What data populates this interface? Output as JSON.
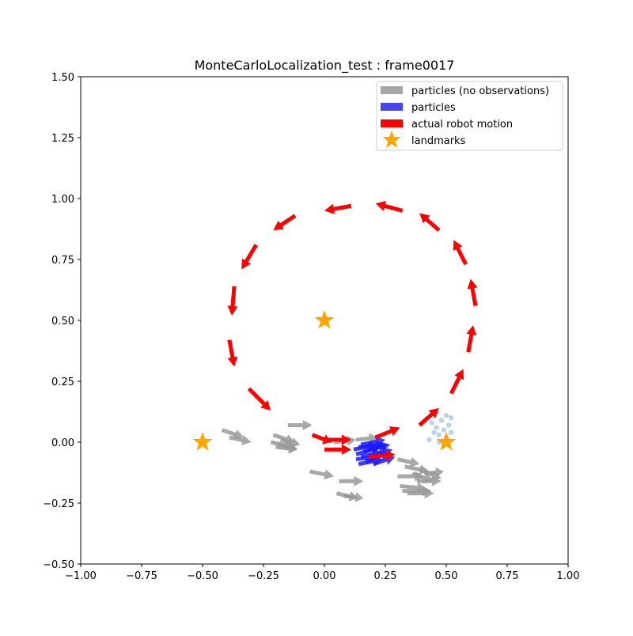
{
  "chart_data": {
    "type": "scatter",
    "title": "MonteCarloLocalization_test : frame0017",
    "xlabel": "",
    "ylabel": "",
    "xlim": [
      -1.0,
      1.0
    ],
    "ylim": [
      -0.5,
      1.5
    ],
    "x_ticks": [
      "−1.00",
      "−0.75",
      "−0.50",
      "−0.25",
      "0.00",
      "0.25",
      "0.50",
      "0.75",
      "1.00"
    ],
    "x_tick_values": [
      -1.0,
      -0.75,
      -0.5,
      -0.25,
      0.0,
      0.25,
      0.5,
      0.75,
      1.0
    ],
    "y_ticks": [
      "−0.50",
      "−0.25",
      "0.00",
      "0.25",
      "0.50",
      "0.75",
      "1.00",
      "1.25",
      "1.50"
    ],
    "y_tick_values": [
      -0.5,
      -0.25,
      0.0,
      0.25,
      0.5,
      0.75,
      1.0,
      1.25,
      1.5
    ],
    "grid": false,
    "legend_position": "top-right",
    "legend": [
      {
        "label": "particles (no observations)",
        "color": "#a6a6a6",
        "marker": "bar"
      },
      {
        "label": "particles",
        "color": "#4545f0",
        "marker": "bar"
      },
      {
        "label": "actual robot motion",
        "color": "#ff0000",
        "marker": "bar"
      },
      {
        "label": "landmarks",
        "color": "#ffa500",
        "marker": "star"
      }
    ],
    "colors": {
      "no_obs": "#999999",
      "particles": "#1a1aff",
      "motion": "#ff0000",
      "landmarks": "#ffa500",
      "scatter": "#8fb6d8"
    },
    "landmarks": [
      {
        "x": -0.5,
        "y": 0.0
      },
      {
        "x": 0.0,
        "y": 0.5
      },
      {
        "x": 0.5,
        "y": 0.0
      }
    ],
    "robot_motion": [
      {
        "x": -0.05,
        "y": 0.03,
        "dx": 0.08,
        "dy": -0.03
      },
      {
        "x": 0.0,
        "y": 0.01,
        "dx": 0.11,
        "dy": 0.0
      },
      {
        "x": 0.0,
        "y": -0.03,
        "dx": 0.11,
        "dy": 0.0
      },
      {
        "x": 0.18,
        "y": -0.06,
        "dx": 0.11,
        "dy": 0.01
      },
      {
        "x": 0.21,
        "y": 0.02,
        "dx": 0.1,
        "dy": 0.04
      },
      {
        "x": 0.39,
        "y": 0.07,
        "dx": 0.08,
        "dy": 0.07
      },
      {
        "x": 0.52,
        "y": 0.2,
        "dx": 0.05,
        "dy": 0.1
      },
      {
        "x": 0.59,
        "y": 0.37,
        "dx": 0.02,
        "dy": 0.11
      },
      {
        "x": 0.62,
        "y": 0.56,
        "dx": -0.02,
        "dy": 0.11
      },
      {
        "x": 0.58,
        "y": 0.73,
        "dx": -0.05,
        "dy": 0.1
      },
      {
        "x": 0.47,
        "y": 0.87,
        "dx": -0.08,
        "dy": 0.07
      },
      {
        "x": 0.32,
        "y": 0.95,
        "dx": -0.11,
        "dy": 0.03
      },
      {
        "x": 0.11,
        "y": 0.97,
        "dx": -0.11,
        "dy": -0.02
      },
      {
        "x": -0.12,
        "y": 0.93,
        "dx": -0.09,
        "dy": -0.06
      },
      {
        "x": -0.28,
        "y": 0.81,
        "dx": -0.06,
        "dy": -0.1
      },
      {
        "x": -0.37,
        "y": 0.64,
        "dx": -0.01,
        "dy": -0.12
      },
      {
        "x": -0.39,
        "y": 0.42,
        "dx": 0.02,
        "dy": -0.11
      },
      {
        "x": -0.31,
        "y": 0.22,
        "dx": 0.09,
        "dy": -0.09
      }
    ],
    "particles_no_obs": [
      {
        "x": -0.42,
        "y": 0.05,
        "dx": 0.09,
        "dy": -0.03
      },
      {
        "x": -0.39,
        "y": 0.02,
        "dx": 0.09,
        "dy": -0.02
      },
      {
        "x": -0.21,
        "y": 0.03,
        "dx": 0.09,
        "dy": -0.03
      },
      {
        "x": -0.18,
        "y": 0.01,
        "dx": 0.08,
        "dy": -0.02
      },
      {
        "x": -0.22,
        "y": 0.0,
        "dx": 0.1,
        "dy": -0.02
      },
      {
        "x": -0.19,
        "y": -0.01,
        "dx": 0.08,
        "dy": -0.02
      },
      {
        "x": -0.2,
        "y": -0.02,
        "dx": 0.09,
        "dy": -0.01
      },
      {
        "x": -0.15,
        "y": 0.07,
        "dx": 0.1,
        "dy": 0.0
      },
      {
        "x": 0.04,
        "y": 0.0,
        "dx": 0.09,
        "dy": 0.01
      },
      {
        "x": 0.13,
        "y": 0.01,
        "dx": 0.09,
        "dy": 0.01
      },
      {
        "x": 0.3,
        "y": -0.07,
        "dx": 0.09,
        "dy": -0.02
      },
      {
        "x": 0.33,
        "y": -0.1,
        "dx": 0.1,
        "dy": -0.02
      },
      {
        "x": 0.3,
        "y": -0.14,
        "dx": 0.11,
        "dy": 0.0
      },
      {
        "x": 0.31,
        "y": -0.18,
        "dx": 0.11,
        "dy": -0.01
      },
      {
        "x": 0.36,
        "y": -0.13,
        "dx": 0.09,
        "dy": -0.03
      },
      {
        "x": 0.39,
        "y": -0.11,
        "dx": 0.09,
        "dy": -0.04
      },
      {
        "x": 0.38,
        "y": -0.16,
        "dx": 0.1,
        "dy": 0.0
      },
      {
        "x": 0.34,
        "y": -0.21,
        "dx": 0.11,
        "dy": 0.0
      },
      {
        "x": 0.32,
        "y": -0.2,
        "dx": 0.12,
        "dy": 0.0
      },
      {
        "x": 0.41,
        "y": -0.13,
        "dx": 0.08,
        "dy": 0.01
      },
      {
        "x": -0.06,
        "y": -0.12,
        "dx": 0.1,
        "dy": -0.02
      },
      {
        "x": 0.06,
        "y": -0.16,
        "dx": 0.1,
        "dy": 0.0
      },
      {
        "x": 0.05,
        "y": -0.21,
        "dx": 0.09,
        "dy": -0.02
      },
      {
        "x": 0.08,
        "y": -0.22,
        "dx": 0.08,
        "dy": -0.01
      }
    ],
    "particles": [
      {
        "x": 0.12,
        "y": -0.03,
        "dx": 0.1,
        "dy": 0.02
      },
      {
        "x": 0.13,
        "y": -0.05,
        "dx": 0.1,
        "dy": 0.03
      },
      {
        "x": 0.14,
        "y": -0.02,
        "dx": 0.11,
        "dy": 0.01
      },
      {
        "x": 0.15,
        "y": -0.06,
        "dx": 0.09,
        "dy": 0.02
      },
      {
        "x": 0.16,
        "y": -0.04,
        "dx": 0.1,
        "dy": 0.03
      },
      {
        "x": 0.13,
        "y": -0.07,
        "dx": 0.09,
        "dy": 0.01
      },
      {
        "x": 0.17,
        "y": -0.08,
        "dx": 0.1,
        "dy": 0.04
      },
      {
        "x": 0.18,
        "y": -0.03,
        "dx": 0.09,
        "dy": 0.02
      },
      {
        "x": 0.14,
        "y": -0.09,
        "dx": 0.1,
        "dy": 0.02
      },
      {
        "x": 0.19,
        "y": -0.06,
        "dx": 0.09,
        "dy": 0.03
      },
      {
        "x": 0.15,
        "y": -0.01,
        "dx": 0.1,
        "dy": 0.02
      },
      {
        "x": 0.2,
        "y": -0.09,
        "dx": 0.09,
        "dy": 0.03
      }
    ],
    "scatter_points": [
      {
        "x": 0.44,
        "y": 0.08
      },
      {
        "x": 0.45,
        "y": 0.04
      },
      {
        "x": 0.46,
        "y": 0.06
      },
      {
        "x": 0.47,
        "y": 0.03
      },
      {
        "x": 0.48,
        "y": 0.09
      },
      {
        "x": 0.49,
        "y": 0.05
      },
      {
        "x": 0.5,
        "y": 0.11
      },
      {
        "x": 0.51,
        "y": 0.07
      },
      {
        "x": 0.52,
        "y": 0.1
      },
      {
        "x": 0.43,
        "y": 0.01
      },
      {
        "x": 0.47,
        "y": 0.0
      },
      {
        "x": 0.5,
        "y": 0.02
      },
      {
        "x": 0.46,
        "y": 0.12
      },
      {
        "x": 0.52,
        "y": 0.04
      },
      {
        "x": 0.49,
        "y": -0.01
      }
    ]
  }
}
